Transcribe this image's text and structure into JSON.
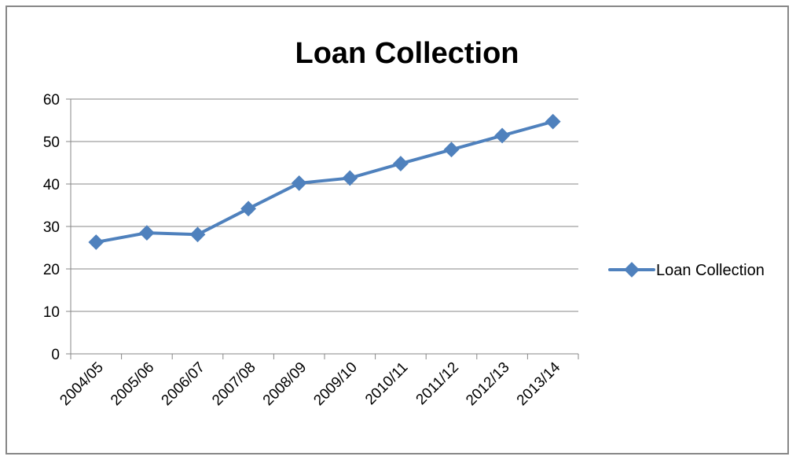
{
  "chart_data": {
    "type": "line",
    "title": "Loan Collection",
    "categories": [
      "2004/05",
      "2005/06",
      "2006/07",
      "2007/08",
      "2008/09",
      "2009/10",
      "2010/11",
      "2011/12",
      "2012/13",
      "2013/14"
    ],
    "series": [
      {
        "name": "Loan Collection",
        "values": [
          26.3,
          28.5,
          28.1,
          34.2,
          40.2,
          41.4,
          44.8,
          48.1,
          51.4,
          54.7
        ],
        "color": "#4F81BD",
        "marker": "diamond"
      }
    ],
    "yticks": [
      "0",
      "10",
      "20",
      "30",
      "40",
      "50",
      "60"
    ],
    "ylim": [
      0,
      60
    ],
    "grid": true,
    "legend_position": "right"
  }
}
